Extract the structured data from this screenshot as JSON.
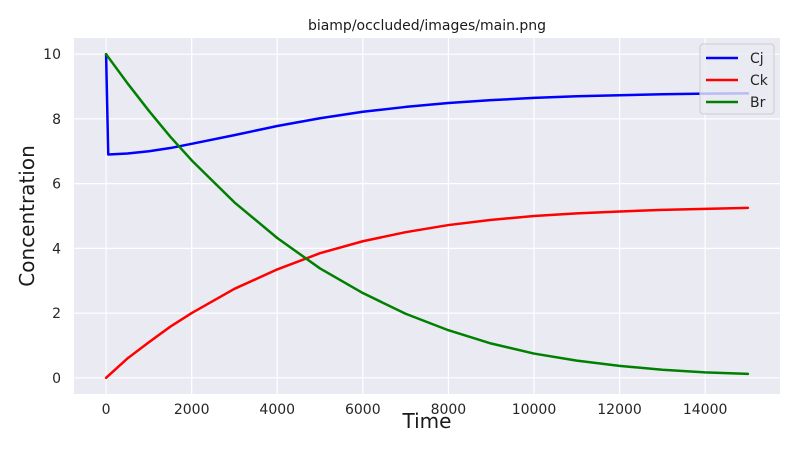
{
  "chart_data": {
    "type": "line",
    "title": "biamp/occluded/images/main.png",
    "xlabel": "Time",
    "ylabel": "Concentration",
    "xlim": [
      -750,
      15750
    ],
    "ylim": [
      -0.5,
      10.5
    ],
    "xticks": [
      0,
      2000,
      4000,
      6000,
      8000,
      10000,
      12000,
      14000
    ],
    "yticks": [
      0,
      2,
      4,
      6,
      8,
      10
    ],
    "grid": true,
    "legend_position": "top-right",
    "series": [
      {
        "name": "Cj",
        "color": "#0000ff",
        "x": [
          0,
          50,
          500,
          1000,
          1500,
          2000,
          3000,
          4000,
          5000,
          6000,
          7000,
          8000,
          9000,
          10000,
          11000,
          12000,
          13000,
          14000,
          15000
        ],
        "y": [
          10.0,
          6.9,
          6.93,
          7.0,
          7.1,
          7.23,
          7.5,
          7.78,
          8.02,
          8.22,
          8.37,
          8.49,
          8.58,
          8.65,
          8.7,
          8.73,
          8.76,
          8.78,
          8.79
        ]
      },
      {
        "name": "Ck",
        "color": "#ff0000",
        "x": [
          0,
          500,
          1000,
          1500,
          2000,
          3000,
          4000,
          5000,
          6000,
          7000,
          8000,
          9000,
          10000,
          11000,
          12000,
          13000,
          14000,
          15000
        ],
        "y": [
          0.0,
          0.6,
          1.1,
          1.58,
          2.0,
          2.75,
          3.35,
          3.85,
          4.22,
          4.5,
          4.72,
          4.88,
          5.0,
          5.08,
          5.14,
          5.19,
          5.22,
          5.25
        ]
      },
      {
        "name": "Br",
        "color": "#008000",
        "x": [
          0,
          500,
          1000,
          1500,
          2000,
          3000,
          4000,
          5000,
          6000,
          7000,
          8000,
          9000,
          10000,
          11000,
          12000,
          13000,
          14000,
          15000
        ],
        "y": [
          10.0,
          9.1,
          8.25,
          7.45,
          6.72,
          5.42,
          4.32,
          3.38,
          2.62,
          1.98,
          1.47,
          1.06,
          0.75,
          0.53,
          0.37,
          0.25,
          0.17,
          0.12
        ]
      }
    ]
  }
}
